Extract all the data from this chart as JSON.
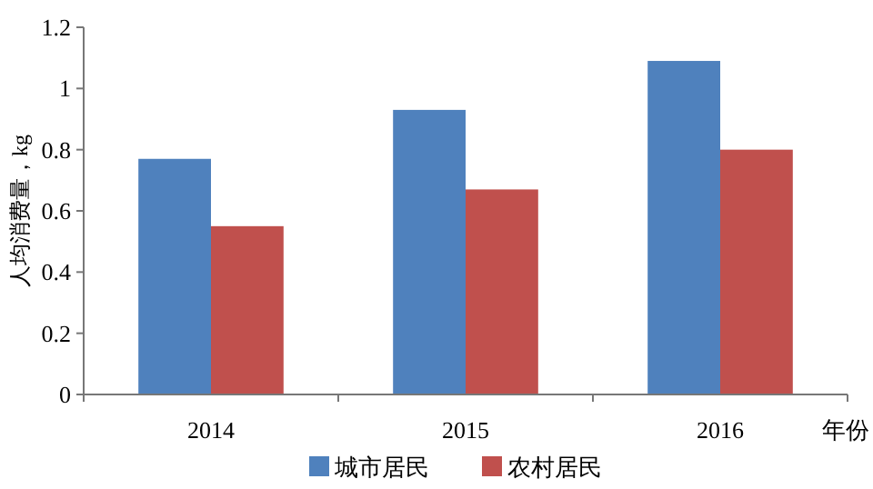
{
  "chart_data": {
    "type": "bar",
    "ylabel": "人均消费量，kg",
    "xlabel": "年份",
    "categories": [
      "2014",
      "2015",
      "2016"
    ],
    "series": [
      {
        "name": "城市居民",
        "color": "#4f81bd",
        "values": [
          0.77,
          0.93,
          1.09
        ]
      },
      {
        "name": "农村居民",
        "color": "#c0504d",
        "values": [
          0.55,
          0.67,
          0.8
        ]
      }
    ],
    "ylim": [
      0,
      1.2
    ],
    "yticks": [
      {
        "value": 0,
        "label": "0"
      },
      {
        "value": 0.2,
        "label": "0.2"
      },
      {
        "value": 0.4,
        "label": "0.4"
      },
      {
        "value": 0.6,
        "label": "0.6"
      },
      {
        "value": 0.8,
        "label": "0.8"
      },
      {
        "value": 1,
        "label": "1"
      },
      {
        "value": 1.2,
        "label": "1.2"
      }
    ],
    "grid": false,
    "legend": "bottom"
  }
}
